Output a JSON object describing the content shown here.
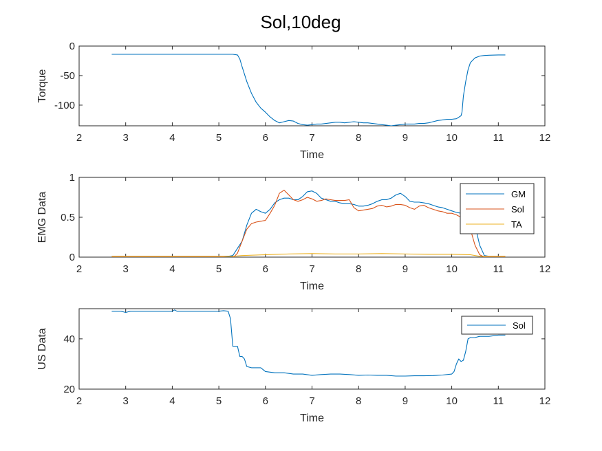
{
  "title": "Sol,10deg",
  "chart_data": [
    {
      "type": "line",
      "xlabel": "Time",
      "ylabel": "Torque",
      "xlim": [
        2,
        12
      ],
      "ylim": [
        -135,
        0
      ],
      "xticks": [
        "2",
        "3",
        "4",
        "5",
        "6",
        "7",
        "8",
        "9",
        "10",
        "11",
        "12"
      ],
      "yticks": [
        "0",
        "-50",
        "-100"
      ],
      "yticks_values": [
        0,
        -50,
        -100
      ],
      "legend": [],
      "series": [
        {
          "color": "#0072BD",
          "x": [
            2.7,
            3.0,
            3.5,
            4.0,
            4.5,
            5.0,
            5.3,
            5.4,
            5.45,
            5.5,
            5.6,
            5.7,
            5.8,
            5.9,
            6.0,
            6.1,
            6.2,
            6.3,
            6.4,
            6.5,
            6.6,
            6.7,
            6.8,
            6.9,
            7.0,
            7.1,
            7.2,
            7.3,
            7.4,
            7.5,
            7.6,
            7.7,
            7.8,
            7.9,
            8.0,
            8.1,
            8.2,
            8.3,
            8.4,
            8.5,
            8.6,
            8.7,
            8.8,
            8.9,
            9.0,
            9.1,
            9.2,
            9.3,
            9.4,
            9.5,
            9.6,
            9.7,
            9.8,
            9.9,
            10.0,
            10.1,
            10.2,
            10.22,
            10.25,
            10.3,
            10.35,
            10.4,
            10.5,
            10.6,
            10.7,
            10.8,
            11.0,
            11.15
          ],
          "y": [
            -14,
            -14,
            -14,
            -14,
            -14,
            -14,
            -14,
            -15,
            -22,
            -35,
            -60,
            -80,
            -95,
            -105,
            -112,
            -120,
            -126,
            -130,
            -128,
            -126,
            -127,
            -131,
            -133,
            -134,
            -133,
            -132,
            -132,
            -131,
            -130,
            -129,
            -129,
            -130,
            -129,
            -128,
            -129,
            -130,
            -130,
            -131,
            -132,
            -133,
            -134,
            -135,
            -134,
            -133,
            -132,
            -132,
            -132,
            -131,
            -131,
            -130,
            -128,
            -126,
            -125,
            -124,
            -124,
            -123,
            -118,
            -112,
            -85,
            -60,
            -40,
            -28,
            -20,
            -17,
            -16,
            -15.5,
            -15,
            -15
          ]
        }
      ]
    },
    {
      "type": "line",
      "xlabel": "Time",
      "ylabel": "EMG Data",
      "xlim": [
        2,
        12
      ],
      "ylim": [
        0,
        1
      ],
      "xticks": [
        "2",
        "3",
        "4",
        "5",
        "6",
        "7",
        "8",
        "9",
        "10",
        "11",
        "12"
      ],
      "yticks": [
        "0",
        "0.5",
        "1"
      ],
      "yticks_values": [
        0,
        0.5,
        1
      ],
      "legend": [
        "GM",
        "Sol",
        "TA"
      ],
      "legend_position": "top-right",
      "series": [
        {
          "name": "GM",
          "color": "#0072BD",
          "x": [
            2.7,
            3.5,
            4.5,
            5.0,
            5.2,
            5.3,
            5.5,
            5.6,
            5.7,
            5.8,
            5.9,
            6.0,
            6.1,
            6.2,
            6.3,
            6.4,
            6.5,
            6.6,
            6.7,
            6.8,
            6.9,
            7.0,
            7.1,
            7.2,
            7.3,
            7.4,
            7.5,
            7.6,
            7.7,
            7.8,
            7.9,
            8.0,
            8.1,
            8.2,
            8.3,
            8.4,
            8.5,
            8.6,
            8.7,
            8.8,
            8.9,
            9.0,
            9.1,
            9.2,
            9.3,
            9.4,
            9.5,
            9.6,
            9.7,
            9.8,
            9.9,
            10.0,
            10.1,
            10.2,
            10.3,
            10.4,
            10.5,
            10.6,
            10.7,
            10.8,
            11.0,
            11.15
          ],
          "y": [
            0.01,
            0.01,
            0.01,
            0.01,
            0.01,
            0.02,
            0.2,
            0.4,
            0.55,
            0.6,
            0.57,
            0.55,
            0.6,
            0.68,
            0.72,
            0.74,
            0.74,
            0.72,
            0.72,
            0.76,
            0.82,
            0.83,
            0.8,
            0.74,
            0.72,
            0.7,
            0.7,
            0.68,
            0.67,
            0.67,
            0.66,
            0.64,
            0.64,
            0.65,
            0.67,
            0.7,
            0.72,
            0.72,
            0.74,
            0.78,
            0.8,
            0.76,
            0.7,
            0.69,
            0.69,
            0.68,
            0.67,
            0.65,
            0.63,
            0.62,
            0.6,
            0.58,
            0.56,
            0.55,
            0.57,
            0.52,
            0.4,
            0.15,
            0.02,
            0.01,
            0.01,
            0.01
          ]
        },
        {
          "name": "Sol",
          "color": "#D95319",
          "x": [
            2.7,
            3.5,
            4.5,
            5.0,
            5.1,
            5.3,
            5.4,
            5.5,
            5.6,
            5.7,
            5.8,
            5.9,
            6.0,
            6.1,
            6.2,
            6.3,
            6.4,
            6.5,
            6.6,
            6.7,
            6.8,
            6.9,
            7.0,
            7.1,
            7.2,
            7.3,
            7.4,
            7.5,
            7.6,
            7.7,
            7.8,
            7.9,
            8.0,
            8.1,
            8.2,
            8.3,
            8.4,
            8.5,
            8.6,
            8.7,
            8.8,
            8.9,
            9.0,
            9.1,
            9.2,
            9.3,
            9.4,
            9.5,
            9.6,
            9.7,
            9.8,
            9.9,
            10.0,
            10.1,
            10.2,
            10.3,
            10.4,
            10.5,
            10.6,
            10.7,
            11.0,
            11.15
          ],
          "y": [
            0.0,
            0.0,
            0.0,
            0.0,
            0.0,
            -0.01,
            0.05,
            0.2,
            0.35,
            0.42,
            0.44,
            0.45,
            0.46,
            0.55,
            0.65,
            0.8,
            0.84,
            0.78,
            0.72,
            0.7,
            0.72,
            0.75,
            0.73,
            0.7,
            0.71,
            0.73,
            0.72,
            0.71,
            0.71,
            0.71,
            0.72,
            0.62,
            0.58,
            0.59,
            0.6,
            0.61,
            0.64,
            0.65,
            0.63,
            0.64,
            0.66,
            0.66,
            0.65,
            0.62,
            0.6,
            0.64,
            0.65,
            0.62,
            0.6,
            0.58,
            0.57,
            0.55,
            0.55,
            0.53,
            0.5,
            0.47,
            0.35,
            0.15,
            0.03,
            0.0,
            0.0,
            0.0
          ]
        },
        {
          "name": "TA",
          "color": "#EDB120",
          "x": [
            2.7,
            3.5,
            4.5,
            5.0,
            5.3,
            5.5,
            6.0,
            6.5,
            7.0,
            7.5,
            8.0,
            8.5,
            9.0,
            9.5,
            10.0,
            10.4,
            10.6,
            11.0,
            11.15
          ],
          "y": [
            0.01,
            0.01,
            0.01,
            0.01,
            0.01,
            0.02,
            0.03,
            0.04,
            0.045,
            0.04,
            0.04,
            0.045,
            0.04,
            0.035,
            0.035,
            0.03,
            0.01,
            0.01,
            0.01
          ]
        }
      ]
    },
    {
      "type": "line",
      "xlabel": "Time",
      "ylabel": "US Data",
      "xlim": [
        2,
        12
      ],
      "ylim": [
        20,
        52
      ],
      "xticks": [
        "2",
        "3",
        "4",
        "5",
        "6",
        "7",
        "8",
        "9",
        "10",
        "11",
        "12"
      ],
      "yticks": [
        "20",
        "40"
      ],
      "yticks_values": [
        20,
        40
      ],
      "legend": [
        "Sol"
      ],
      "legend_position": "top-right",
      "series": [
        {
          "name": "Sol",
          "color": "#0072BD",
          "x": [
            2.7,
            2.9,
            3.0,
            3.1,
            3.5,
            4.0,
            4.05,
            4.1,
            4.2,
            4.5,
            4.8,
            5.0,
            5.1,
            5.2,
            5.25,
            5.3,
            5.33,
            5.4,
            5.45,
            5.5,
            5.55,
            5.6,
            5.7,
            5.8,
            5.9,
            6.0,
            6.2,
            6.4,
            6.6,
            6.8,
            7.0,
            7.2,
            7.4,
            7.6,
            7.8,
            8.0,
            8.2,
            8.4,
            8.6,
            8.8,
            9.0,
            9.2,
            9.4,
            9.6,
            9.8,
            10.0,
            10.05,
            10.1,
            10.15,
            10.2,
            10.25,
            10.3,
            10.35,
            10.4,
            10.5,
            10.6,
            10.8,
            11.0,
            11.15
          ],
          "y": [
            51,
            51,
            50.5,
            51,
            51,
            51,
            51.5,
            51,
            51,
            51,
            51,
            51,
            51.2,
            51,
            48,
            37,
            37,
            37,
            33,
            33,
            32,
            29,
            28.5,
            28.5,
            28.5,
            27,
            26.5,
            26.5,
            26,
            26,
            25.5,
            25.8,
            26,
            26,
            25.8,
            25.5,
            25.6,
            25.5,
            25.5,
            25.2,
            25.2,
            25.3,
            25.3,
            25.4,
            25.6,
            26,
            27,
            30,
            32,
            31,
            31.5,
            35,
            40,
            40.5,
            40.5,
            41,
            41,
            41.5,
            41.5
          ]
        }
      ]
    }
  ]
}
